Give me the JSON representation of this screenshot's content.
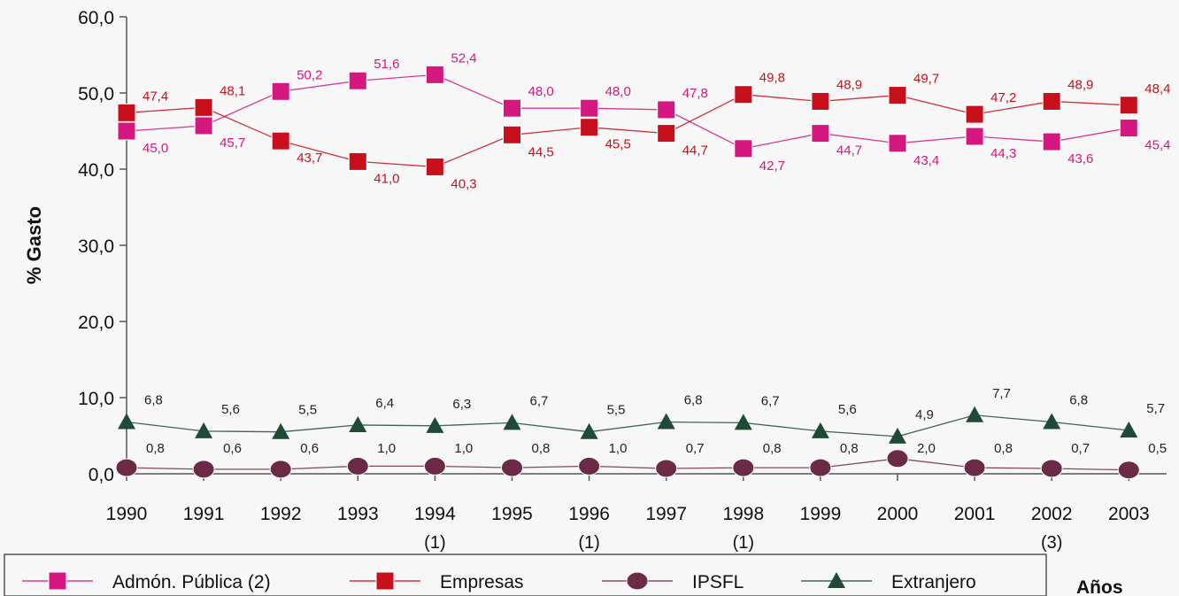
{
  "chart_data": {
    "type": "line",
    "title": "",
    "xlabel": "Años",
    "ylabel": "% Gasto",
    "ylim": [
      0,
      60
    ],
    "y_ticks": [
      "0,0",
      "10,0",
      "20,0",
      "30,0",
      "40,0",
      "50,0",
      "60,0"
    ],
    "grid": false,
    "legend_position": "bottom",
    "categories": [
      "1990",
      "1991",
      "1992",
      "1993",
      "1994",
      "1995",
      "1996",
      "1997",
      "1998",
      "1999",
      "2000",
      "2001",
      "2002",
      "2003"
    ],
    "category_notes": [
      "",
      "",
      "",
      "",
      "(1)",
      "",
      "(1)",
      "",
      "(1)",
      "",
      "",
      "",
      "(3)",
      ""
    ],
    "series": [
      {
        "name": "Admón. Pública (2)",
        "color": "#d4187f",
        "marker": "square",
        "values": [
          45.0,
          45.7,
          50.2,
          51.6,
          52.4,
          48.0,
          48.0,
          47.8,
          42.7,
          44.7,
          43.4,
          44.3,
          43.6,
          45.4
        ],
        "labels": [
          "45,0",
          "45,7",
          "50,2",
          "51,6",
          "52,4",
          "48,0",
          "48,0",
          "47,8",
          "42,7",
          "44,7",
          "43,4",
          "44,3",
          "43,6",
          "45,4"
        ]
      },
      {
        "name": "Empresas",
        "color": "#c8101c",
        "marker": "square",
        "values": [
          47.4,
          48.1,
          43.7,
          41.0,
          40.3,
          44.5,
          45.5,
          44.7,
          49.8,
          48.9,
          49.7,
          47.2,
          48.9,
          48.4
        ],
        "labels": [
          "47,4",
          "48,1",
          "43,7",
          "41,0",
          "40,3",
          "44,5",
          "45,5",
          "44,7",
          "49,8",
          "48,9",
          "49,7",
          "47,2",
          "48,9",
          "48,4"
        ]
      },
      {
        "name": "IPSFL",
        "color": "#6b2a45",
        "marker": "circle",
        "values": [
          0.8,
          0.6,
          0.6,
          1.0,
          1.0,
          0.8,
          1.0,
          0.7,
          0.8,
          0.8,
          2.0,
          0.8,
          0.7,
          0.5
        ],
        "labels": [
          "0,8",
          "0,6",
          "0,6",
          "1,0",
          "1,0",
          "0,8",
          "1,0",
          "0,7",
          "0,8",
          "0,8",
          "2,0",
          "0,8",
          "0,7",
          "0,5"
        ]
      },
      {
        "name": "Extranjero",
        "color": "#1f4a36",
        "marker": "triangle",
        "values": [
          6.8,
          5.6,
          5.5,
          6.4,
          6.3,
          6.7,
          5.5,
          6.8,
          6.7,
          5.6,
          4.9,
          7.7,
          6.8,
          5.7
        ],
        "labels": [
          "6,8",
          "5,6",
          "5,5",
          "6,4",
          "6,3",
          "6,7",
          "5,5",
          "6,8",
          "6,7",
          "5,6",
          "4,9",
          "7,7",
          "6,8",
          "5,7"
        ]
      }
    ]
  }
}
